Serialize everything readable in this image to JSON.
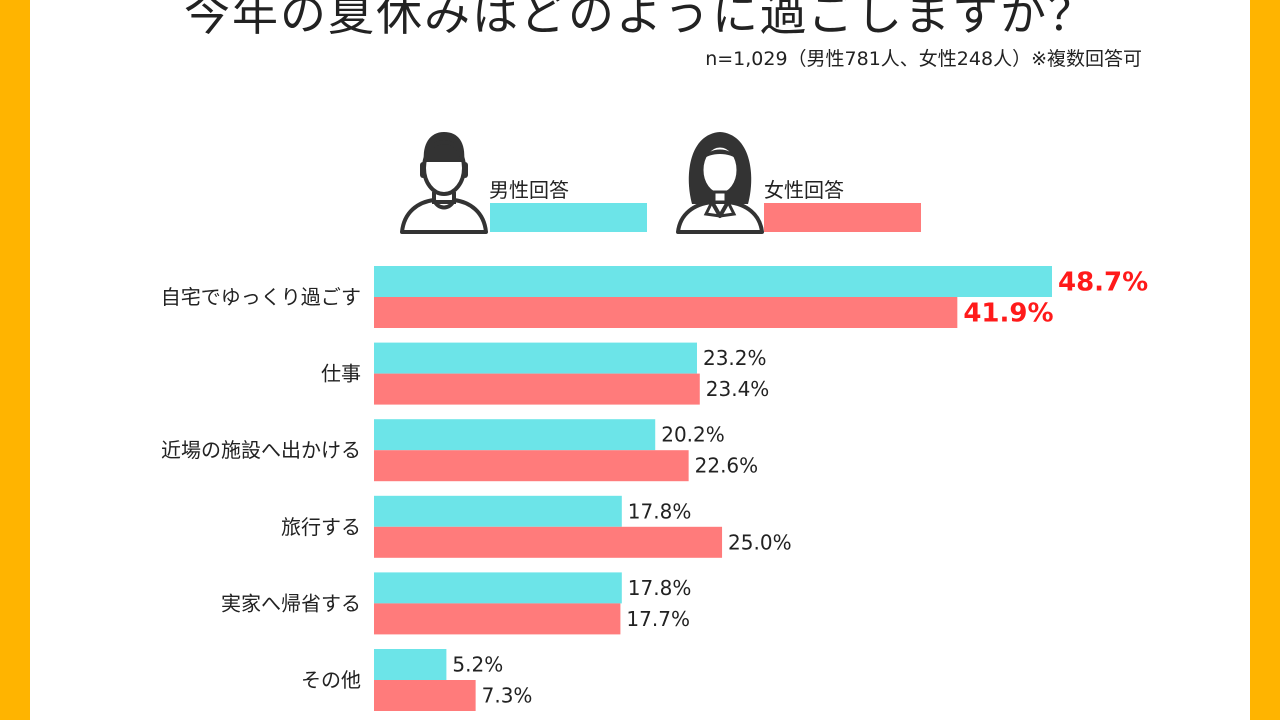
{
  "title": "今年の夏休みはどのように過ごしますか？",
  "sample_note": "n=1,029（男性781人、女性248人）※複数回答可",
  "legend": {
    "male": {
      "label": "男性回答",
      "icon": "male-person-icon"
    },
    "female": {
      "label": "女性回答",
      "icon": "female-person-icon"
    }
  },
  "colors": {
    "male": "#6ce4e8",
    "female": "#ff7b7b",
    "highlight": "#ff1a1a",
    "frame": "#ffb400"
  },
  "chart_data": {
    "type": "bar",
    "orientation": "horizontal",
    "categories": [
      "自宅でゆっくり過ごす",
      "仕事",
      "近場の施設へ出かける",
      "旅行する",
      "実家へ帰省する",
      "その他"
    ],
    "series": [
      {
        "name": "男性回答",
        "values": [
          48.7,
          23.2,
          20.2,
          17.8,
          17.8,
          5.2
        ]
      },
      {
        "name": "女性回答",
        "values": [
          41.9,
          23.4,
          22.6,
          25.0,
          17.7,
          7.3
        ]
      }
    ],
    "value_labels": [
      [
        "48.7%",
        "23.2%",
        "20.2%",
        "17.8%",
        "17.8%",
        "5.2%"
      ],
      [
        "41.9%",
        "23.4%",
        "22.6%",
        "25.0%",
        "17.7%",
        "7.3%"
      ]
    ],
    "highlighted_category": "自宅でゆっくり過ごす",
    "unit": "%",
    "xlim": [
      0,
      48.7
    ],
    "grid": false,
    "legend_position": "top"
  }
}
